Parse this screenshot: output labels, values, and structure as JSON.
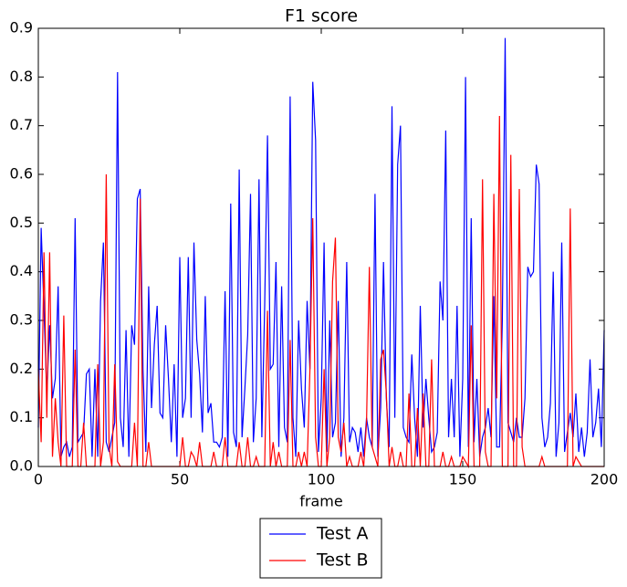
{
  "chart_data": {
    "type": "line",
    "title": "F1 score",
    "x_label": "frame",
    "xlim": [
      0,
      200
    ],
    "xticks": [
      0,
      50,
      100,
      150,
      200
    ],
    "ylim": [
      0,
      0.9
    ],
    "yticks": [
      {
        "value": 0,
        "label": "0.0"
      },
      0.1,
      0.2,
      0.3,
      0.4,
      0.5,
      0.6,
      0.7,
      0.8,
      0.9
    ],
    "legend": "below",
    "x": [
      0,
      1,
      2,
      3,
      4,
      5,
      6,
      7,
      8,
      9,
      10,
      11,
      12,
      13,
      14,
      15,
      16,
      17,
      18,
      19,
      20,
      21,
      22,
      23,
      24,
      25,
      26,
      27,
      28,
      29,
      30,
      31,
      32,
      33,
      34,
      35,
      36,
      37,
      38,
      39,
      40,
      41,
      42,
      43,
      44,
      45,
      46,
      47,
      48,
      49,
      50,
      51,
      52,
      53,
      54,
      55,
      56,
      57,
      58,
      59,
      60,
      61,
      62,
      63,
      64,
      65,
      66,
      67,
      68,
      69,
      70,
      71,
      72,
      73,
      74,
      75,
      76,
      77,
      78,
      79,
      80,
      81,
      82,
      83,
      84,
      85,
      86,
      87,
      88,
      89,
      90,
      91,
      92,
      93,
      94,
      95,
      96,
      97,
      98,
      99,
      100,
      101,
      102,
      103,
      104,
      105,
      106,
      107,
      108,
      109,
      110,
      111,
      112,
      113,
      114,
      115,
      116,
      117,
      118,
      119,
      120,
      121,
      122,
      123,
      124,
      125,
      126,
      127,
      128,
      129,
      130,
      131,
      132,
      133,
      134,
      135,
      136,
      137,
      138,
      139,
      140,
      141,
      142,
      143,
      144,
      145,
      146,
      147,
      148,
      149,
      150,
      151,
      152,
      153,
      154,
      155,
      156,
      157,
      158,
      159,
      160,
      161,
      162,
      163,
      164,
      165,
      166,
      167,
      168,
      169,
      170,
      171,
      172,
      173,
      174,
      175,
      176,
      177,
      178,
      179,
      180,
      181,
      182,
      183,
      184,
      185,
      186,
      187,
      188,
      189,
      190,
      191,
      192,
      193,
      194,
      195,
      196,
      197,
      198,
      199,
      200
    ],
    "series": [
      {
        "name": "Test A",
        "color": "#0000ff",
        "values": [
          0.08,
          0.49,
          0.32,
          0.15,
          0.29,
          0.14,
          0.18,
          0.37,
          0.02,
          0.04,
          0.05,
          0.02,
          0.04,
          0.51,
          0.05,
          0.06,
          0.07,
          0.19,
          0.2,
          0.02,
          0.2,
          0.02,
          0.34,
          0.46,
          0.05,
          0.03,
          0.06,
          0.09,
          0.81,
          0.1,
          0.04,
          0.28,
          0.02,
          0.29,
          0.25,
          0.55,
          0.57,
          0.2,
          0.03,
          0.37,
          0.12,
          0.25,
          0.33,
          0.11,
          0.1,
          0.29,
          0.18,
          0.05,
          0.21,
          0.02,
          0.43,
          0.1,
          0.14,
          0.43,
          0.1,
          0.46,
          0.26,
          0.19,
          0.07,
          0.35,
          0.11,
          0.13,
          0.05,
          0.05,
          0.04,
          0.06,
          0.36,
          0.02,
          0.54,
          0.07,
          0.04,
          0.61,
          0.06,
          0.16,
          0.27,
          0.56,
          0.05,
          0.14,
          0.59,
          0.06,
          0.33,
          0.68,
          0.2,
          0.21,
          0.42,
          0.04,
          0.37,
          0.08,
          0.05,
          0.76,
          0.1,
          0.02,
          0.3,
          0.16,
          0.08,
          0.34,
          0.2,
          0.79,
          0.67,
          0.03,
          0.14,
          0.46,
          0.03,
          0.3,
          0.06,
          0.09,
          0.34,
          0.02,
          0.1,
          0.42,
          0.05,
          0.08,
          0.07,
          0.03,
          0.08,
          0.02,
          0.1,
          0.06,
          0.04,
          0.56,
          0.02,
          0.12,
          0.42,
          0.14,
          0.04,
          0.74,
          0.1,
          0.62,
          0.7,
          0.08,
          0.06,
          0.05,
          0.23,
          0.1,
          0.02,
          0.33,
          0.08,
          0.18,
          0.1,
          0.03,
          0.04,
          0.07,
          0.38,
          0.3,
          0.69,
          0.06,
          0.18,
          0.06,
          0.33,
          0.02,
          0.18,
          0.8,
          0.04,
          0.51,
          0.05,
          0.18,
          0.02,
          0.06,
          0.08,
          0.12,
          0.06,
          0.35,
          0.04,
          0.04,
          0.3,
          0.88,
          0.09,
          0.07,
          0.05,
          0.1,
          0.06,
          0.06,
          0.14,
          0.41,
          0.39,
          0.4,
          0.62,
          0.58,
          0.1,
          0.04,
          0.06,
          0.13,
          0.4,
          0.02,
          0.09,
          0.46,
          0.03,
          0.07,
          0.11,
          0.06,
          0.15,
          0.03,
          0.08,
          0.02,
          0.07,
          0.22,
          0.06,
          0.09,
          0.16,
          0.04,
          0.28
        ]
      },
      {
        "name": "Test B",
        "color": "#ff0000",
        "values": [
          0.2,
          0.05,
          0.44,
          0.1,
          0.44,
          0.02,
          0.14,
          0.05,
          0.0,
          0.31,
          0.0,
          0.0,
          0.0,
          0.24,
          0.0,
          0.0,
          0.09,
          0.0,
          0.0,
          0.0,
          0.0,
          0.21,
          0.0,
          0.05,
          0.6,
          0.04,
          0.0,
          0.21,
          0.01,
          0.0,
          0.0,
          0.0,
          0.0,
          0.0,
          0.09,
          0.0,
          0.55,
          0.0,
          0.0,
          0.05,
          0.0,
          0.0,
          0.0,
          0.0,
          0.0,
          0.0,
          0.0,
          0.0,
          0.0,
          0.0,
          0.0,
          0.06,
          0.0,
          0.0,
          0.03,
          0.02,
          0.0,
          0.05,
          0.0,
          0.0,
          0.0,
          0.0,
          0.03,
          0.0,
          0.0,
          0.0,
          0.06,
          0.0,
          0.0,
          0.0,
          0.0,
          0.05,
          0.0,
          0.0,
          0.06,
          0.0,
          0.0,
          0.02,
          0.0,
          0.0,
          0.0,
          0.32,
          0.0,
          0.05,
          0.0,
          0.03,
          0.0,
          0.0,
          0.0,
          0.26,
          0.0,
          0.0,
          0.03,
          0.0,
          0.03,
          0.0,
          0.2,
          0.51,
          0.06,
          0.0,
          0.0,
          0.2,
          0.0,
          0.06,
          0.38,
          0.47,
          0.06,
          0.03,
          0.09,
          0.0,
          0.02,
          0.0,
          0.0,
          0.0,
          0.03,
          0.0,
          0.09,
          0.41,
          0.04,
          0.02,
          0.0,
          0.22,
          0.24,
          0.15,
          0.0,
          0.04,
          0.0,
          0.0,
          0.03,
          0.0,
          0.0,
          0.15,
          0.0,
          0.0,
          0.12,
          0.0,
          0.15,
          0.0,
          0.0,
          0.22,
          0.0,
          0.0,
          0.0,
          0.03,
          0.0,
          0.0,
          0.02,
          0.0,
          0.0,
          0.0,
          0.02,
          0.01,
          0.0,
          0.29,
          0.0,
          0.0,
          0.0,
          0.59,
          0.03,
          0.0,
          0.0,
          0.56,
          0.14,
          0.72,
          0.0,
          0.0,
          0.0,
          0.64,
          0.0,
          0.0,
          0.57,
          0.04,
          0.0,
          0.0,
          0.0,
          0.0,
          0.0,
          0.0,
          0.02,
          0.0,
          0.0,
          0.0,
          0.0,
          0.0,
          0.0,
          0.0,
          0.0,
          0.0,
          0.53,
          0.0,
          0.02,
          0.01,
          0.0,
          0.0,
          0.0,
          0.0,
          0.0,
          0.0,
          0.0,
          0.0,
          0.0
        ]
      }
    ]
  }
}
